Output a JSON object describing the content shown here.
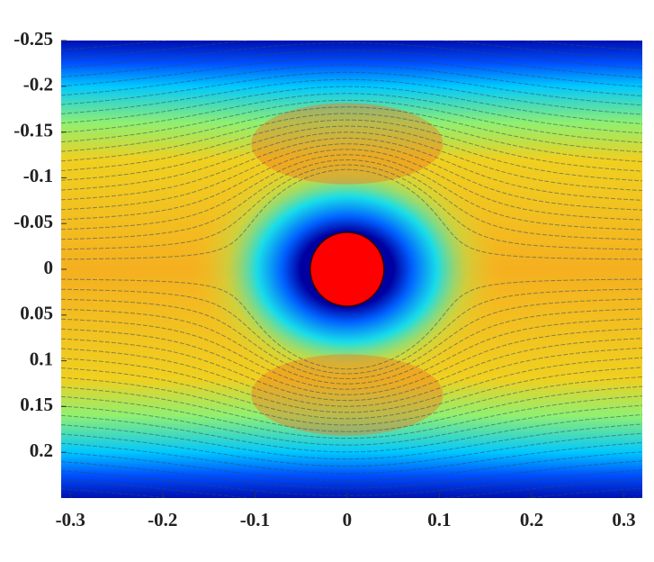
{
  "chart_data": {
    "type": "field",
    "xlim": [
      -0.31,
      0.32
    ],
    "xticks": [
      -0.3,
      -0.2,
      -0.1,
      0,
      0.1,
      0.2,
      0.3
    ],
    "ylim": [
      -0.25,
      0.25
    ],
    "yticks": [
      -0.25,
      -0.2,
      -0.15,
      -0.1,
      -0.05,
      0,
      0.05,
      0.1,
      0.15,
      0.2
    ],
    "y_reversed": true,
    "cylinder": {
      "x": 0,
      "y": 0,
      "radius": 0.04,
      "color": "#ff0000"
    }
  }
}
